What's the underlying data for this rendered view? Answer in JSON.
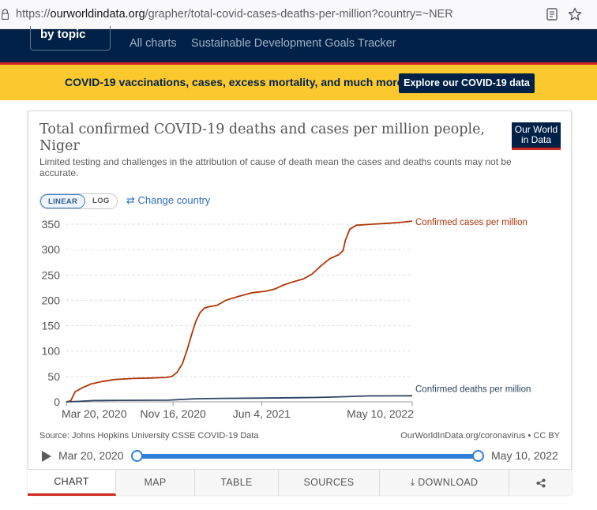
{
  "browser": {
    "url_prefix": "https://",
    "url_domain": "ourworldindata.org",
    "url_path": "/grapher/total-covid-cases-deaths-per-million?country=~NER"
  },
  "sitenav": {
    "bytopic": "by topic",
    "links": [
      "All charts",
      "Sustainable Development Goals Tracker"
    ]
  },
  "banner": {
    "text": "COVID-19 vaccinations, cases, excess mortality, and much more",
    "button": "Explore our COVID-19 data"
  },
  "chart": {
    "title": "Total confirmed COVID-19 deaths and cases per million people, Niger",
    "subtitle": "Limited testing and challenges in the attribution of cause of death mean the cases and deaths counts may not be accurate.",
    "logo": "Our World in Data",
    "scale": {
      "linear": "LINEAR",
      "log": "LOG"
    },
    "change_country": "Change country",
    "source": "Source: Johns Hopkins University CSSE COVID-19 Data",
    "license": "OurWorldInData.org/coronavirus • CC BY"
  },
  "colors": {
    "cases": "#b13507",
    "deaths": "#2c4463",
    "accent": "#2f7ed8",
    "navy": "#002147",
    "banner": "#fbc82e"
  },
  "chart_data": {
    "type": "line",
    "title": "Total confirmed COVID-19 deaths and cases per million people, Niger",
    "x_ticks": [
      "Mar 20, 2020",
      "Nov 16, 2020",
      "Jun 4, 2021",
      "May 10, 2022"
    ],
    "x_tick_days": [
      0,
      241,
      441,
      781
    ],
    "x_range_days": [
      0,
      781
    ],
    "ylim": [
      0,
      350
    ],
    "y_ticks": [
      0,
      50,
      100,
      150,
      200,
      250,
      300,
      350
    ],
    "series": [
      {
        "name": "Confirmed cases per million",
        "points": [
          [
            0,
            0
          ],
          [
            10,
            2
          ],
          [
            20,
            20
          ],
          [
            35,
            27
          ],
          [
            55,
            35
          ],
          [
            80,
            40
          ],
          [
            110,
            44
          ],
          [
            150,
            46
          ],
          [
            190,
            47
          ],
          [
            225,
            48
          ],
          [
            238,
            50
          ],
          [
            250,
            58
          ],
          [
            262,
            75
          ],
          [
            272,
            100
          ],
          [
            282,
            130
          ],
          [
            292,
            158
          ],
          [
            302,
            176
          ],
          [
            312,
            185
          ],
          [
            325,
            188
          ],
          [
            340,
            190
          ],
          [
            360,
            200
          ],
          [
            390,
            208
          ],
          [
            420,
            215
          ],
          [
            450,
            218
          ],
          [
            470,
            222
          ],
          [
            490,
            230
          ],
          [
            510,
            236
          ],
          [
            535,
            242
          ],
          [
            555,
            252
          ],
          [
            575,
            268
          ],
          [
            595,
            282
          ],
          [
            615,
            290
          ],
          [
            625,
            298
          ],
          [
            630,
            318
          ],
          [
            640,
            340
          ],
          [
            655,
            348
          ],
          [
            690,
            350
          ],
          [
            730,
            352
          ],
          [
            760,
            354
          ],
          [
            781,
            356
          ]
        ]
      },
      {
        "name": "Confirmed deaths per million",
        "points": [
          [
            0,
            0
          ],
          [
            30,
            1
          ],
          [
            60,
            2.5
          ],
          [
            120,
            3
          ],
          [
            230,
            3.2
          ],
          [
            290,
            6
          ],
          [
            350,
            6.8
          ],
          [
            450,
            7.4
          ],
          [
            560,
            8.6
          ],
          [
            620,
            10
          ],
          [
            681,
            11.6
          ],
          [
            781,
            12
          ]
        ]
      }
    ]
  },
  "timeline": {
    "start": "Mar 20, 2020",
    "end": "May 10, 2022"
  },
  "tabs": [
    "CHART",
    "MAP",
    "TABLE",
    "SOURCES",
    "DOWNLOAD",
    ""
  ]
}
